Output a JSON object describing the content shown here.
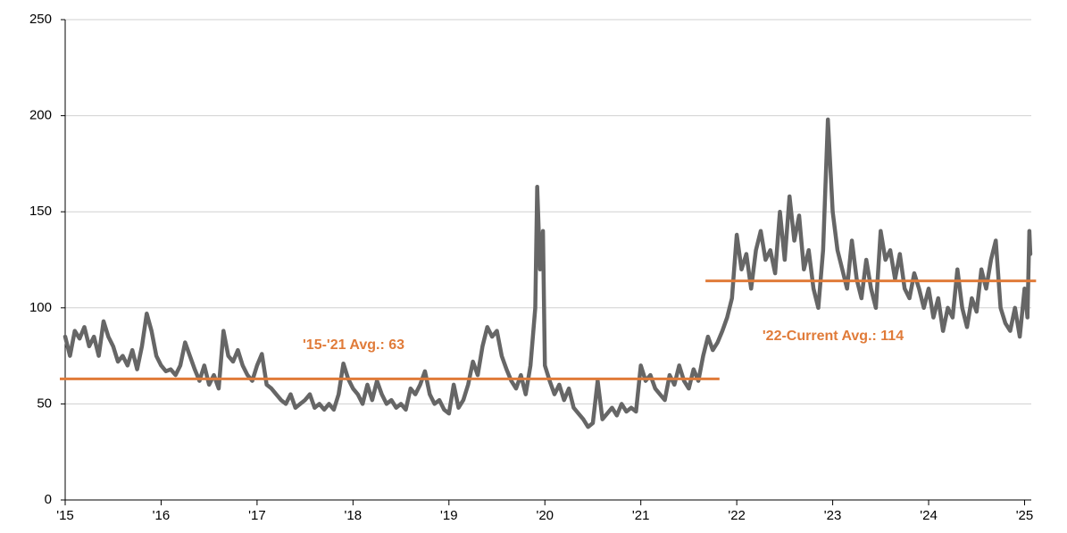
{
  "chart_data": {
    "type": "line",
    "color": "#666666",
    "xlim": [
      2015,
      2025.07
    ],
    "xticks": [
      {
        "value": 2015,
        "label": "'15"
      },
      {
        "value": 2016,
        "label": "'16"
      },
      {
        "value": 2017,
        "label": "'17"
      },
      {
        "value": 2018,
        "label": "'18"
      },
      {
        "value": 2019,
        "label": "'19"
      },
      {
        "value": 2020,
        "label": "'20"
      },
      {
        "value": 2021,
        "label": "'21"
      },
      {
        "value": 2022,
        "label": "'22"
      },
      {
        "value": 2023,
        "label": "'23"
      },
      {
        "value": 2024,
        "label": "'24"
      },
      {
        "value": 2025,
        "label": "'25"
      }
    ],
    "ylim": [
      0,
      250
    ],
    "yticks": [
      0,
      50,
      100,
      150,
      200,
      250
    ],
    "grid": true,
    "x": [
      2015.0,
      2015.05,
      2015.1,
      2015.15,
      2015.2,
      2015.25,
      2015.3,
      2015.35,
      2015.4,
      2015.45,
      2015.5,
      2015.55,
      2015.6,
      2015.65,
      2015.7,
      2015.75,
      2015.8,
      2015.85,
      2015.9,
      2015.95,
      2016.0,
      2016.05,
      2016.1,
      2016.15,
      2016.2,
      2016.25,
      2016.3,
      2016.35,
      2016.4,
      2016.45,
      2016.5,
      2016.55,
      2016.6,
      2016.65,
      2016.7,
      2016.75,
      2016.8,
      2016.85,
      2016.9,
      2016.95,
      2017.0,
      2017.05,
      2017.1,
      2017.15,
      2017.2,
      2017.25,
      2017.3,
      2017.35,
      2017.4,
      2017.45,
      2017.5,
      2017.55,
      2017.6,
      2017.65,
      2017.7,
      2017.75,
      2017.8,
      2017.85,
      2017.9,
      2017.95,
      2018.0,
      2018.05,
      2018.1,
      2018.15,
      2018.2,
      2018.25,
      2018.3,
      2018.35,
      2018.4,
      2018.45,
      2018.5,
      2018.55,
      2018.6,
      2018.65,
      2018.7,
      2018.75,
      2018.8,
      2018.85,
      2018.9,
      2018.95,
      2019.0,
      2019.05,
      2019.1,
      2019.15,
      2019.2,
      2019.25,
      2019.3,
      2019.35,
      2019.4,
      2019.45,
      2019.5,
      2019.55,
      2019.6,
      2019.65,
      2019.7,
      2019.75,
      2019.8,
      2019.85,
      2019.9,
      2019.92,
      2019.95,
      2019.98,
      2020.0,
      2020.05,
      2020.1,
      2020.15,
      2020.2,
      2020.25,
      2020.3,
      2020.35,
      2020.4,
      2020.45,
      2020.5,
      2020.55,
      2020.6,
      2020.65,
      2020.7,
      2020.75,
      2020.8,
      2020.85,
      2020.9,
      2020.95,
      2021.0,
      2021.05,
      2021.1,
      2021.15,
      2021.2,
      2021.25,
      2021.3,
      2021.35,
      2021.4,
      2021.45,
      2021.5,
      2021.55,
      2021.6,
      2021.65,
      2021.7,
      2021.75,
      2021.8,
      2021.85,
      2021.9,
      2021.95,
      2022.0,
      2022.05,
      2022.1,
      2022.15,
      2022.2,
      2022.25,
      2022.3,
      2022.35,
      2022.4,
      2022.45,
      2022.5,
      2022.55,
      2022.6,
      2022.65,
      2022.7,
      2022.75,
      2022.8,
      2022.85,
      2022.9,
      2022.95,
      2023.0,
      2023.05,
      2023.1,
      2023.15,
      2023.2,
      2023.25,
      2023.3,
      2023.35,
      2023.4,
      2023.45,
      2023.5,
      2023.55,
      2023.6,
      2023.65,
      2023.7,
      2023.75,
      2023.8,
      2023.85,
      2023.9,
      2023.95,
      2024.0,
      2024.05,
      2024.1,
      2024.15,
      2024.2,
      2024.25,
      2024.3,
      2024.35,
      2024.4,
      2024.45,
      2024.5,
      2024.55,
      2024.6,
      2024.65,
      2024.7,
      2024.75,
      2024.8,
      2024.85,
      2024.9,
      2024.95,
      2025.0,
      2025.03,
      2025.05,
      2025.06
    ],
    "values": [
      85,
      75,
      88,
      84,
      90,
      80,
      85,
      75,
      93,
      85,
      80,
      72,
      75,
      70,
      78,
      68,
      80,
      97,
      88,
      75,
      70,
      67,
      68,
      65,
      70,
      82,
      75,
      68,
      62,
      70,
      60,
      65,
      58,
      88,
      75,
      72,
      78,
      70,
      65,
      62,
      70,
      76,
      60,
      58,
      55,
      52,
      50,
      55,
      48,
      50,
      52,
      55,
      48,
      50,
      47,
      50,
      47,
      55,
      71,
      63,
      58,
      55,
      50,
      60,
      52,
      62,
      55,
      50,
      52,
      48,
      50,
      47,
      58,
      55,
      60,
      67,
      55,
      50,
      52,
      47,
      45,
      60,
      48,
      52,
      60,
      72,
      65,
      80,
      90,
      85,
      88,
      75,
      68,
      62,
      58,
      65,
      55,
      70,
      100,
      163,
      120,
      140,
      70,
      62,
      55,
      60,
      52,
      58,
      48,
      45,
      42,
      38,
      40,
      62,
      42,
      45,
      48,
      44,
      50,
      46,
      48,
      46,
      70,
      62,
      65,
      58,
      55,
      52,
      65,
      60,
      70,
      62,
      58,
      68,
      62,
      75,
      85,
      78,
      82,
      88,
      95,
      105,
      138,
      120,
      128,
      110,
      130,
      140,
      125,
      130,
      118,
      150,
      125,
      158,
      135,
      148,
      120,
      130,
      110,
      100,
      130,
      198,
      150,
      130,
      120,
      110,
      135,
      115,
      105,
      125,
      110,
      100,
      140,
      125,
      130,
      115,
      128,
      110,
      105,
      118,
      110,
      100,
      110,
      95,
      105,
      88,
      100,
      95,
      120,
      100,
      90,
      105,
      98,
      120,
      110,
      125,
      135,
      100,
      92,
      88,
      100,
      85,
      110,
      95,
      140,
      128
    ],
    "annotations": [
      {
        "label": "'15-'21 Avg.: 63",
        "value": 63,
        "x": [
          2015,
          2021.82
        ],
        "color": "#e07b39"
      },
      {
        "label": "'22-Current Avg.: 114",
        "value": 114,
        "x": [
          2021.73,
          2025.12
        ],
        "color": "#e07b39"
      }
    ]
  }
}
